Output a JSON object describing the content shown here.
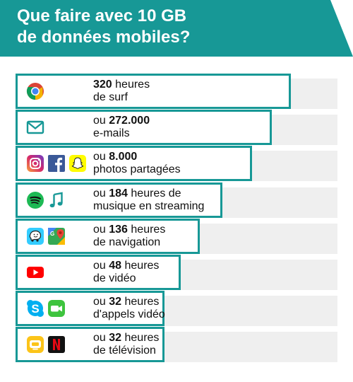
{
  "title": {
    "line1": "Que faire avec 10 GB",
    "line2": "de données mobiles?"
  },
  "colors": {
    "banner": "#179896",
    "bar_border": "#179896",
    "band": "#efefef"
  },
  "chart_data": {
    "type": "bar",
    "orientation": "horizontal",
    "unit": "usage équivalent à 10 GB",
    "categories": [
      "320 heures de surf",
      "ou 272.000 e-mails",
      "ou 8.000 photos partagées",
      "ou 184 heures de musique en streaming",
      "ou 136 heures de navigation",
      "ou 48 heures de vidéo",
      "ou 32 heures d'appels vidéo",
      "ou 32 heures de télévision"
    ],
    "values": [
      320,
      272000,
      8000,
      184,
      136,
      48,
      32,
      32
    ],
    "bar_fraction": [
      1.0,
      0.93,
      0.86,
      0.75,
      0.67,
      0.6,
      0.54,
      0.54
    ],
    "items": [
      {
        "pre": "",
        "num": "320",
        "post": " heures",
        "line2": "de surf",
        "icons": [
          "chrome-icon"
        ]
      },
      {
        "pre": "ou ",
        "num": "272.000",
        "post": "",
        "line2": "e-mails",
        "icons": [
          "mail-icon"
        ]
      },
      {
        "pre": "ou ",
        "num": "8.000",
        "post": "",
        "line2": "photos partagées",
        "icons": [
          "instagram-icon",
          "facebook-icon",
          "snapchat-icon"
        ]
      },
      {
        "pre": "ou ",
        "num": "184",
        "post": " heures de",
        "line2": "musique en streaming",
        "icons": [
          "spotify-icon",
          "music-note-icon"
        ]
      },
      {
        "pre": "ou ",
        "num": "136",
        "post": " heures",
        "line2": "de navigation",
        "icons": [
          "waze-icon",
          "google-maps-icon"
        ]
      },
      {
        "pre": "ou ",
        "num": "48",
        "post": " heures",
        "line2": "de vidéo",
        "icons": [
          "youtube-icon"
        ]
      },
      {
        "pre": "ou ",
        "num": "32",
        "post": " heures",
        "line2": "d'appels vidéo",
        "icons": [
          "skype-icon",
          "facetime-icon"
        ]
      },
      {
        "pre": "ou ",
        "num": "32",
        "post": " heures",
        "line2": "de télévision",
        "icons": [
          "tv-app-icon",
          "netflix-icon"
        ]
      }
    ]
  }
}
